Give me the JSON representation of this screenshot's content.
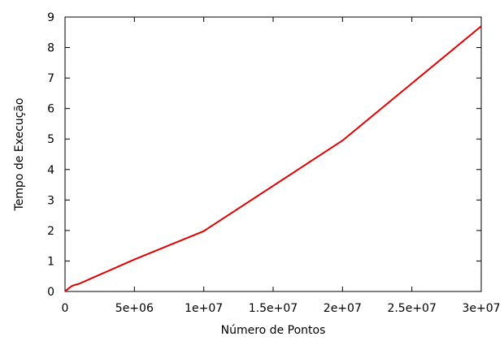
{
  "chart_data": {
    "type": "line",
    "title": "",
    "xlabel": "Número de Pontos",
    "ylabel": "Tempo de Execução",
    "xlim": [
      0,
      30000000
    ],
    "ylim": [
      0,
      9
    ],
    "grid": false,
    "x_ticks": [
      0,
      5000000,
      10000000,
      15000000,
      20000000,
      25000000,
      30000000
    ],
    "x_tick_labels": [
      "0",
      "5e+06",
      "1e+07",
      "1.5e+07",
      "2e+07",
      "2.5e+07",
      "3e+07"
    ],
    "y_ticks": [
      0,
      1,
      2,
      3,
      4,
      5,
      6,
      7,
      8,
      9
    ],
    "y_tick_labels": [
      "0",
      "1",
      "2",
      "3",
      "4",
      "5",
      "6",
      "7",
      "8",
      "9"
    ],
    "series": [
      {
        "color": "#e00000",
        "x": [
          0,
          250000,
          500000,
          750000,
          1000000,
          2000000,
          5000000,
          10000000,
          20000000,
          30000000
        ],
        "y": [
          0.0,
          0.1,
          0.18,
          0.22,
          0.25,
          0.45,
          1.05,
          1.98,
          4.95,
          8.7
        ]
      }
    ]
  }
}
